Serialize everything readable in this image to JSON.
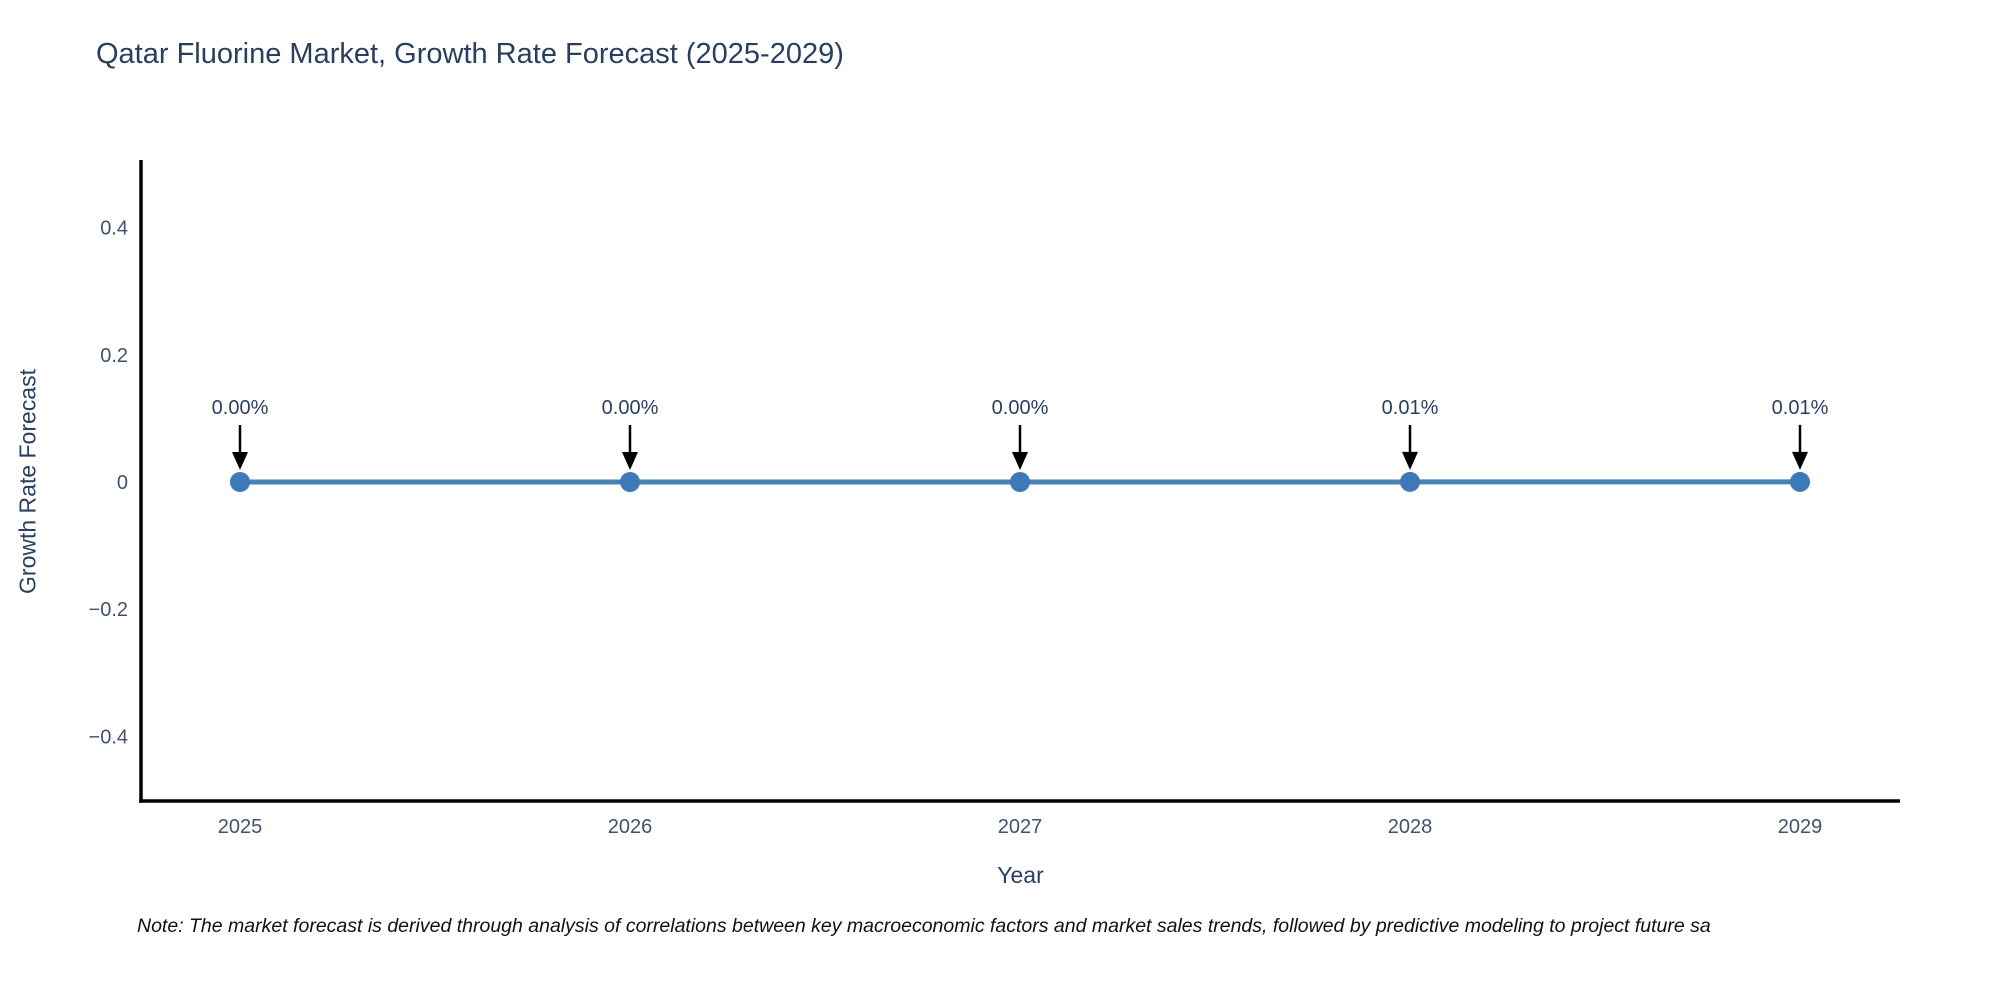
{
  "title": "Qatar Fluorine Market, Growth Rate Forecast (2025-2029)",
  "note": "Note: The market forecast is derived through analysis of correlations between key macroeconomic factors and market sales trends, followed by predictive modeling to project future sa",
  "chart_data": {
    "type": "line",
    "title": "Qatar Fluorine Market, Growth Rate Forecast (2025-2029)",
    "xlabel": "Year",
    "ylabel": "Growth Rate Forecast",
    "categories": [
      "2025",
      "2026",
      "2027",
      "2028",
      "2029"
    ],
    "series": [
      {
        "name": "Growth Rate Forecast",
        "values": [
          0.0,
          0.0,
          0.0,
          0.0001,
          0.0001
        ],
        "point_labels": [
          "0.00%",
          "0.00%",
          "0.00%",
          "0.01%",
          "0.01%"
        ]
      }
    ],
    "yticks": [
      0.4,
      0.2,
      0,
      -0.2,
      -0.4
    ],
    "ytick_labels": [
      "0.4",
      "0.2",
      "0",
      "−0.2",
      "−0.4"
    ],
    "ylim": [
      -0.5,
      0.5
    ],
    "grid": false,
    "legend": "none",
    "colors": {
      "line": "#4682b4",
      "marker": "#3d79b8",
      "axis": "#000000",
      "tick_text": "#42526e",
      "annotation_text": "#2a3f5f",
      "arrow": "#000000"
    }
  }
}
